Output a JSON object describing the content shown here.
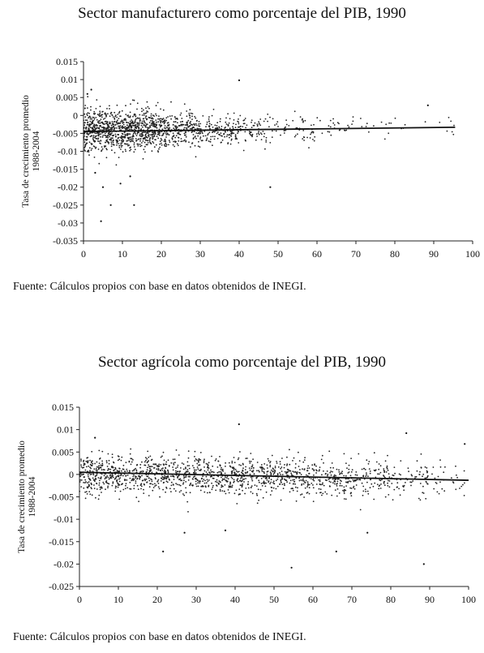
{
  "chart_data": [
    {
      "type": "scatter",
      "title": "Sector manufacturero como porcentaje del PIB, 1990",
      "ylabel": [
        "Tasa de crecimiento promedio",
        "1988-2004"
      ],
      "xlabel": "",
      "xlim": [
        0,
        100
      ],
      "ylim": [
        -0.035,
        0.015
      ],
      "x_ticks": [
        0,
        10,
        20,
        30,
        40,
        50,
        60,
        70,
        80,
        90,
        100
      ],
      "y_ticks": [
        0.015,
        0.01,
        0.005,
        0,
        -0.005,
        -0.01,
        -0.015,
        -0.02,
        -0.025,
        -0.03,
        -0.035
      ],
      "y_tick_labels": [
        "0.015",
        "0.01",
        "0.005",
        "0",
        "-0.005",
        "-0.01",
        "-0.015",
        "-0.02",
        "-0.025",
        "-0.03",
        "-0.035"
      ],
      "grid": false,
      "legend": "none",
      "point_density": [
        {
          "x_range": [
            0,
            10
          ],
          "y_center": -0.004,
          "y_spread": 0.004,
          "count": 500
        },
        {
          "x_range": [
            10,
            20
          ],
          "y_center": -0.004,
          "y_spread": 0.004,
          "count": 450
        },
        {
          "x_range": [
            20,
            30
          ],
          "y_center": -0.004,
          "y_spread": 0.0035,
          "count": 260
        },
        {
          "x_range": [
            30,
            40
          ],
          "y_center": -0.004,
          "y_spread": 0.003,
          "count": 150
        },
        {
          "x_range": [
            40,
            50
          ],
          "y_center": -0.004,
          "y_spread": 0.003,
          "count": 80
        },
        {
          "x_range": [
            50,
            60
          ],
          "y_center": -0.004,
          "y_spread": 0.003,
          "count": 45
        },
        {
          "x_range": [
            60,
            70
          ],
          "y_center": -0.003,
          "y_spread": 0.0025,
          "count": 25
        },
        {
          "x_range": [
            70,
            80
          ],
          "y_center": -0.003,
          "y_spread": 0.0025,
          "count": 12
        },
        {
          "x_range": [
            80,
            96
          ],
          "y_center": -0.003,
          "y_spread": 0.0025,
          "count": 12
        }
      ],
      "outliers": [
        {
          "x": 1,
          "y": 0.006
        },
        {
          "x": 2,
          "y": 0.0072
        },
        {
          "x": 40,
          "y": 0.0098
        },
        {
          "x": 4.5,
          "y": -0.0295
        },
        {
          "x": 13,
          "y": -0.025
        },
        {
          "x": 7,
          "y": -0.025
        },
        {
          "x": 48,
          "y": -0.02
        },
        {
          "x": 5,
          "y": -0.02
        },
        {
          "x": 9.5,
          "y": -0.019
        },
        {
          "x": 3,
          "y": -0.016
        },
        {
          "x": 12,
          "y": -0.017
        },
        {
          "x": 88.5,
          "y": 0.0028
        }
      ],
      "trend": {
        "x": [
          0,
          95.5
        ],
        "y": [
          -0.0045,
          -0.0033
        ]
      }
    },
    {
      "type": "scatter",
      "title": "Sector agrícola como porcentaje del PIB, 1990",
      "ylabel": [
        "Tasa de crecimiento promedio",
        "1988-2004"
      ],
      "xlabel": "",
      "xlim": [
        0,
        100
      ],
      "ylim": [
        -0.025,
        0.015
      ],
      "x_ticks": [
        0,
        10,
        20,
        30,
        40,
        50,
        60,
        70,
        80,
        90,
        100
      ],
      "y_ticks": [
        0.015,
        0.01,
        0.005,
        0,
        -0.005,
        -0.01,
        -0.015,
        -0.02,
        -0.025
      ],
      "y_tick_labels": [
        "0.015",
        "0.01",
        "0.005",
        "0",
        "-0.005",
        "-0.01",
        "-0.015",
        "-0.02",
        "-0.025"
      ],
      "grid": false,
      "legend": "none",
      "point_density": [
        {
          "x_range": [
            0,
            10
          ],
          "y_center": 0.0003,
          "y_spread": 0.003,
          "count": 260
        },
        {
          "x_range": [
            10,
            20
          ],
          "y_center": 0.0,
          "y_spread": 0.003,
          "count": 200
        },
        {
          "x_range": [
            20,
            30
          ],
          "y_center": 0.0,
          "y_spread": 0.003,
          "count": 200
        },
        {
          "x_range": [
            30,
            40
          ],
          "y_center": -0.0002,
          "y_spread": 0.003,
          "count": 200
        },
        {
          "x_range": [
            40,
            50
          ],
          "y_center": -0.0004,
          "y_spread": 0.003,
          "count": 190
        },
        {
          "x_range": [
            50,
            60
          ],
          "y_center": -0.0006,
          "y_spread": 0.003,
          "count": 170
        },
        {
          "x_range": [
            60,
            70
          ],
          "y_center": -0.0008,
          "y_spread": 0.003,
          "count": 150
        },
        {
          "x_range": [
            70,
            80
          ],
          "y_center": -0.0009,
          "y_spread": 0.003,
          "count": 110
        },
        {
          "x_range": [
            80,
            90
          ],
          "y_center": -0.001,
          "y_spread": 0.003,
          "count": 70
        },
        {
          "x_range": [
            90,
            99
          ],
          "y_center": -0.0012,
          "y_spread": 0.003,
          "count": 30
        }
      ],
      "outliers": [
        {
          "x": 4,
          "y": 0.0082
        },
        {
          "x": 41,
          "y": 0.0112
        },
        {
          "x": 84,
          "y": 0.0092
        },
        {
          "x": 21.5,
          "y": -0.0172
        },
        {
          "x": 27,
          "y": -0.013
        },
        {
          "x": 54.5,
          "y": -0.0208
        },
        {
          "x": 66,
          "y": -0.0172
        },
        {
          "x": 88.5,
          "y": -0.02
        },
        {
          "x": 37.5,
          "y": -0.0125
        },
        {
          "x": 74,
          "y": -0.013
        },
        {
          "x": 99,
          "y": 0.0068
        }
      ],
      "trend": {
        "x": [
          0,
          100
        ],
        "y": [
          0.0005,
          -0.0013
        ]
      }
    }
  ],
  "panels": [
    {
      "title": "Sector manufacturero como porcentaje del PIB, 1990",
      "source": "Fuente: Cálculos propios con base en datos obtenidos de INEGI."
    },
    {
      "title": "Sector agrícola como porcentaje del PIB, 1990",
      "source": "Fuente: Cálculos propios con base en datos obtenidos de INEGI."
    }
  ]
}
